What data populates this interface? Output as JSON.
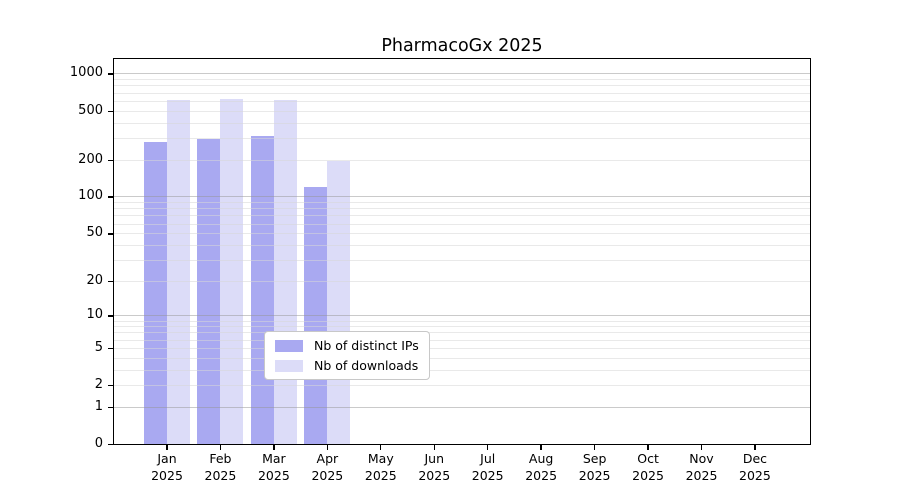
{
  "chart_data": {
    "type": "bar",
    "title": "PharmacoGx 2025",
    "x_categories": [
      "Jan",
      "Feb",
      "Mar",
      "Apr",
      "May",
      "Jun",
      "Jul",
      "Aug",
      "Sep",
      "Oct",
      "Nov",
      "Dec"
    ],
    "x_sublabel": "2025",
    "series": [
      {
        "name": "Nb of distinct IPs",
        "color": "#a9a9f1",
        "values": [
          280,
          295,
          310,
          120,
          null,
          null,
          null,
          null,
          null,
          null,
          null,
          null
        ]
      },
      {
        "name": "Nb of downloads",
        "color": "#dcdcf8",
        "values": [
          610,
          620,
          605,
          194,
          null,
          null,
          null,
          null,
          null,
          null,
          null,
          null
        ]
      }
    ],
    "yticks": [
      0,
      1,
      2,
      5,
      10,
      20,
      50,
      100,
      200,
      500,
      1000
    ],
    "ylim": [
      0,
      1310
    ],
    "scale": "log1p",
    "grid": true,
    "legend_position": "lower-center",
    "xlabel": "",
    "ylabel": ""
  },
  "colors": {
    "spine": "#000000",
    "major_grid": "#c9c9c9",
    "minor_grid": "#e9e9e9",
    "legend_border": "#c8c8c8",
    "background": "#ffffff"
  }
}
